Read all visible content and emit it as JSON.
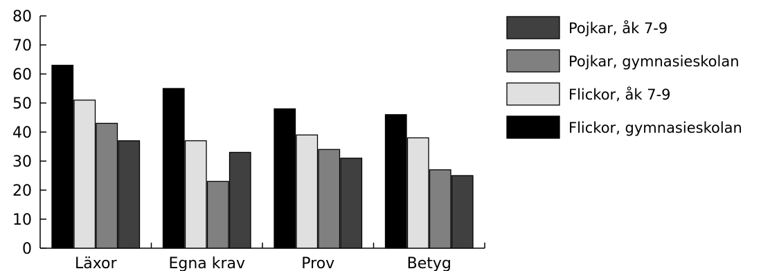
{
  "chart_data": {
    "type": "bar",
    "categories": [
      "Läxor",
      "Egna krav",
      "Prov",
      "Betyg"
    ],
    "series": [
      {
        "name": "Flickor, gymnasieskolan",
        "color": "#000000",
        "values": [
          63,
          55,
          48,
          46
        ]
      },
      {
        "name": "Flickor, åk 7-9",
        "color": "#e0e0e0",
        "values": [
          51,
          37,
          39,
          38
        ]
      },
      {
        "name": "Pojkar, gymnasieskolan",
        "color": "#808080",
        "values": [
          43,
          23,
          34,
          27
        ]
      },
      {
        "name": "Pojkar, åk 7-9",
        "color": "#404040",
        "values": [
          37,
          33,
          31,
          25
        ]
      }
    ],
    "legend_order": [
      "Pojkar, åk 7-9",
      "Pojkar, gymnasieskolan",
      "Flickor, åk 7-9",
      "Flickor, gymnasieskolan"
    ],
    "legend_position": "right",
    "ylim": [
      0,
      80
    ],
    "yticks": [
      0,
      10,
      20,
      30,
      40,
      50,
      60,
      70,
      80
    ],
    "grid": false,
    "title": "",
    "xlabel": "",
    "ylabel": ""
  }
}
